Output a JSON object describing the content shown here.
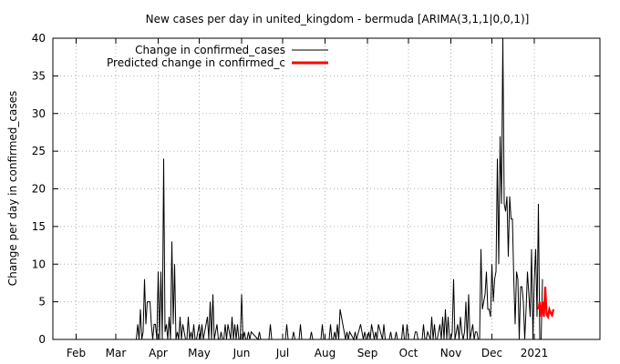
{
  "chart_data": {
    "type": "line",
    "title": "New cases per day in united_kingdom - bermuda [ARIMA(3,1,1|0,0,1)]",
    "xlabel": "",
    "ylabel": "Change per day in confirmed_cases",
    "ylim": [
      0,
      40
    ],
    "yticks": [
      0,
      5,
      10,
      15,
      20,
      25,
      30,
      35,
      40
    ],
    "xlim_day": [
      0,
      400
    ],
    "xtick_labels": [
      "Feb",
      "Mar",
      "Apr",
      "May",
      "Jun",
      "Jul",
      "Aug",
      "Sep",
      "Oct",
      "Nov",
      "Dec",
      "2021"
    ],
    "xtick_days": [
      17,
      46,
      77,
      107,
      138,
      168,
      199,
      230,
      260,
      291,
      321,
      352
    ],
    "grid": true,
    "legend_position": "top-left",
    "series": [
      {
        "name": "Change in confirmed_cases",
        "color": "#000000",
        "x_day": [
          61,
          62,
          63,
          64,
          65,
          66,
          67,
          68,
          69,
          70,
          71,
          72,
          73,
          74,
          75,
          76,
          77,
          78,
          79,
          80,
          81,
          82,
          83,
          84,
          85,
          86,
          87,
          88,
          89,
          90,
          91,
          92,
          93,
          94,
          95,
          96,
          97,
          98,
          99,
          100,
          101,
          102,
          103,
          104,
          105,
          106,
          107,
          108,
          109,
          110,
          111,
          112,
          113,
          114,
          115,
          116,
          117,
          118,
          119,
          120,
          121,
          122,
          123,
          124,
          125,
          126,
          127,
          128,
          129,
          130,
          131,
          132,
          133,
          134,
          135,
          136,
          137,
          138,
          139,
          140,
          141,
          142,
          143,
          144,
          145,
          150,
          151,
          152,
          158,
          159,
          160,
          170,
          171,
          172,
          175,
          176,
          177,
          180,
          181,
          182,
          188,
          189,
          190,
          196,
          197,
          198,
          202,
          203,
          204,
          205,
          206,
          207,
          208,
          209,
          210,
          214,
          215,
          216,
          217,
          220,
          221,
          222,
          225,
          226,
          227,
          228,
          229,
          230,
          231,
          232,
          233,
          235,
          236,
          237,
          238,
          241,
          242,
          243,
          246,
          247,
          248,
          250,
          251,
          252,
          255,
          256,
          257,
          258,
          259,
          260,
          264,
          265,
          266,
          267,
          270,
          271,
          272,
          273,
          274,
          276,
          277,
          278,
          279,
          280,
          281,
          282,
          283,
          284,
          285,
          286,
          287,
          288,
          289,
          290,
          291,
          292,
          293,
          294,
          295,
          296,
          297,
          298,
          299,
          300,
          301,
          302,
          303,
          304,
          305,
          306,
          307,
          308,
          309,
          310,
          311,
          312,
          313,
          314,
          315,
          316,
          317,
          318,
          319,
          320,
          321,
          322,
          323,
          324,
          325,
          326,
          327,
          328,
          329,
          330,
          331,
          332,
          333,
          334,
          335,
          336,
          337,
          338,
          339,
          340,
          341,
          342,
          343,
          344,
          345,
          346,
          347,
          348,
          349,
          350,
          351,
          352,
          353,
          354,
          355,
          356,
          357,
          358
        ],
        "values": [
          0,
          2,
          0,
          4,
          0,
          1,
          8,
          2,
          5,
          5,
          5,
          2,
          0,
          2,
          2,
          0,
          9,
          0,
          9,
          0,
          24,
          1,
          2,
          0,
          3,
          0,
          13,
          2,
          10,
          0,
          1,
          0,
          3,
          0,
          2,
          1,
          0,
          0,
          3,
          0,
          1,
          0,
          2,
          0,
          0,
          1,
          2,
          0,
          2,
          0,
          1,
          2,
          3,
          0,
          5,
          0,
          6,
          0,
          1,
          2,
          0,
          0,
          1,
          0,
          0,
          2,
          0,
          2,
          1,
          0,
          3,
          0,
          2,
          0,
          2,
          0,
          0,
          6,
          0,
          1,
          0,
          0,
          1,
          0,
          1,
          0,
          1,
          0,
          0,
          2,
          0,
          0,
          2,
          0,
          0,
          1,
          0,
          0,
          2,
          0,
          0,
          1,
          0,
          0,
          2,
          0,
          0,
          2,
          0,
          0,
          1,
          0,
          2,
          0,
          4,
          0,
          1,
          0,
          1,
          0,
          1,
          0,
          2,
          1,
          0,
          1,
          0,
          0,
          1,
          0,
          2,
          0,
          1,
          0,
          2,
          0,
          2,
          0,
          0,
          1,
          0,
          0,
          1,
          0,
          0,
          2,
          0,
          0,
          2,
          0,
          0,
          1,
          1,
          0,
          0,
          2,
          0,
          0,
          1,
          0,
          3,
          0,
          2,
          0,
          0,
          1,
          2,
          0,
          3,
          0,
          4,
          0,
          3,
          0,
          0,
          1,
          8,
          0,
          1,
          2,
          0,
          3,
          1,
          0,
          1,
          5,
          0,
          6,
          0,
          1,
          2,
          0,
          1,
          1,
          0,
          0,
          12,
          4,
          5,
          6,
          9,
          4,
          4,
          3,
          10,
          5,
          8,
          9,
          24,
          10,
          27,
          18,
          41,
          18,
          17,
          19,
          11,
          19,
          16,
          16,
          8,
          2,
          9,
          8,
          0,
          7,
          7,
          5,
          0,
          4,
          9,
          6,
          3,
          12,
          0,
          8,
          12,
          3,
          18,
          0,
          0,
          8
        ]
      },
      {
        "name": "Predicted change in confirmed_c",
        "color": "#ff0000",
        "x_day": [
          355,
          356,
          357,
          358,
          359,
          360,
          361,
          362,
          363,
          364,
          365,
          366
        ],
        "values": [
          4,
          5,
          3,
          5,
          3,
          7,
          3.3,
          3,
          4,
          3.5,
          3.2,
          4
        ]
      }
    ]
  }
}
